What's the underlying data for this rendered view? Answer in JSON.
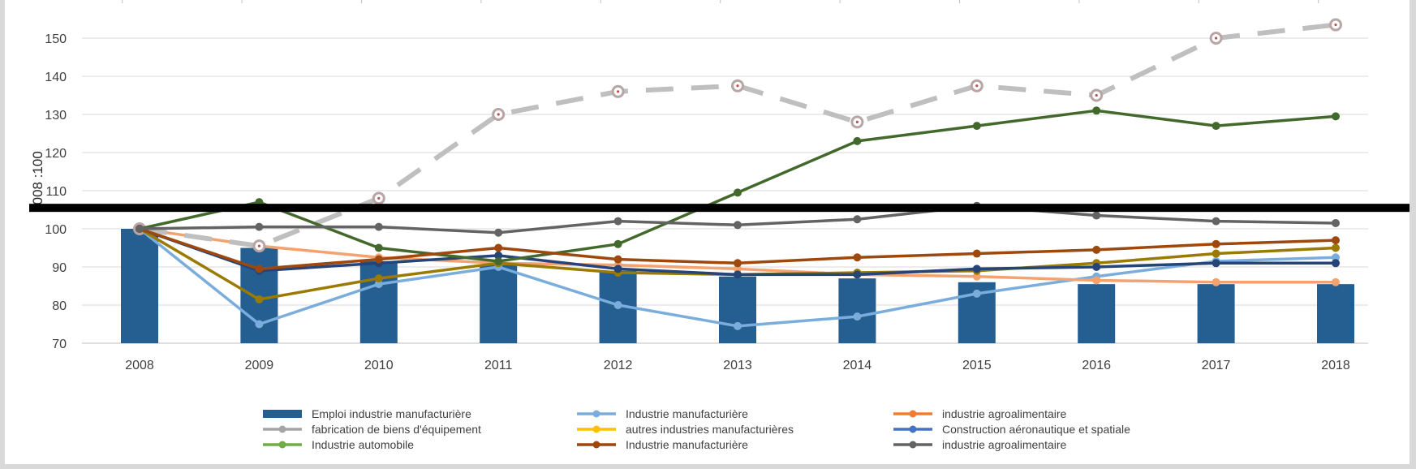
{
  "chart_data": {
    "type": "bar+line",
    "title": "",
    "xlabel": "",
    "ylabel": "2008 :100",
    "ylim": [
      70,
      155
    ],
    "yticks": [
      70,
      80,
      90,
      100,
      110,
      120,
      130,
      140,
      150
    ],
    "grid": true,
    "legend_position": "bottom",
    "categories": [
      "2008",
      "2009",
      "2010",
      "2011",
      "2012",
      "2013",
      "2014",
      "2015",
      "2016",
      "2017",
      "2018"
    ],
    "reference_line": {
      "y": 105.5,
      "color": "#000000"
    },
    "series": [
      {
        "name": "Emploi industrie manufacturière",
        "kind": "bar",
        "color": "#255e91",
        "values": [
          100,
          95,
          91.5,
          90.5,
          89,
          87.5,
          87,
          86,
          85.5,
          85.5,
          85.5
        ]
      },
      {
        "name": "Industrie manufacturière",
        "kind": "line",
        "color": "#7aaddc",
        "values": [
          100,
          75,
          85.5,
          90,
          80,
          74.5,
          77,
          83,
          87.5,
          91.5,
          92.5
        ]
      },
      {
        "name": "industrie agroalimentaire",
        "kind": "line",
        "color": "#f4a270",
        "values": [
          100,
          95.5,
          92.5,
          91,
          90.5,
          89.5,
          88,
          87.5,
          86.5,
          86,
          86
        ]
      },
      {
        "name": "fabrication de biens d'équipement",
        "kind": "line",
        "dashed": true,
        "color": "#bfbfbf",
        "marker": "#c9a9a9",
        "values": [
          100,
          95.5,
          108,
          130,
          136,
          137.5,
          128,
          137.5,
          135,
          150,
          153.5
        ]
      },
      {
        "name": "autres industries manufacturières",
        "kind": "line",
        "color": "#9a7a00",
        "values": [
          100,
          81.5,
          87,
          91,
          88.5,
          88,
          88.5,
          89,
          91,
          93.5,
          95
        ]
      },
      {
        "name": "Construction aéronautique et spatiale",
        "kind": "line",
        "color": "#264478",
        "values": [
          100,
          89,
          91,
          93,
          89.5,
          88,
          88,
          89.5,
          90,
          91,
          91
        ]
      },
      {
        "name": "Industrie automobile",
        "kind": "line",
        "color": "#43682b",
        "values": [
          100,
          107,
          95,
          91.5,
          96,
          109.5,
          123,
          127,
          131,
          127,
          129.5
        ]
      },
      {
        "name": "Industrie manufacturière",
        "kind": "line",
        "color": "#9e480e",
        "values": [
          100,
          89.5,
          92,
          95,
          92,
          91,
          92.5,
          93.5,
          94.5,
          96,
          97
        ]
      },
      {
        "name": "industrie agroalimentaire",
        "kind": "line",
        "color": "#636363",
        "values": [
          100,
          100.5,
          100.5,
          99,
          102,
          101,
          102.5,
          106,
          103.5,
          102,
          101.5
        ]
      }
    ],
    "legend": [
      {
        "label": "Emploi industrie manufacturière",
        "swatch": "bar",
        "color": "#255e91"
      },
      {
        "label": "Industrie manufacturière",
        "swatch": "line",
        "color": "#7aaddc"
      },
      {
        "label": "industrie agroalimentaire",
        "swatch": "line",
        "color": "#ed7d31"
      },
      {
        "label": "fabrication de biens d'équipement",
        "swatch": "line",
        "color": "#a5a5a5"
      },
      {
        "label": "autres industries manufacturières",
        "swatch": "line",
        "color": "#ffc000"
      },
      {
        "label": "Construction aéronautique et spatiale",
        "swatch": "line",
        "color": "#4472c4"
      },
      {
        "label": "Industrie automobile",
        "swatch": "line",
        "color": "#70ad47"
      },
      {
        "label": "Industrie manufacturière",
        "swatch": "line",
        "color": "#9e480e"
      },
      {
        "label": "industrie agroalimentaire",
        "swatch": "line",
        "color": "#636363"
      }
    ]
  }
}
